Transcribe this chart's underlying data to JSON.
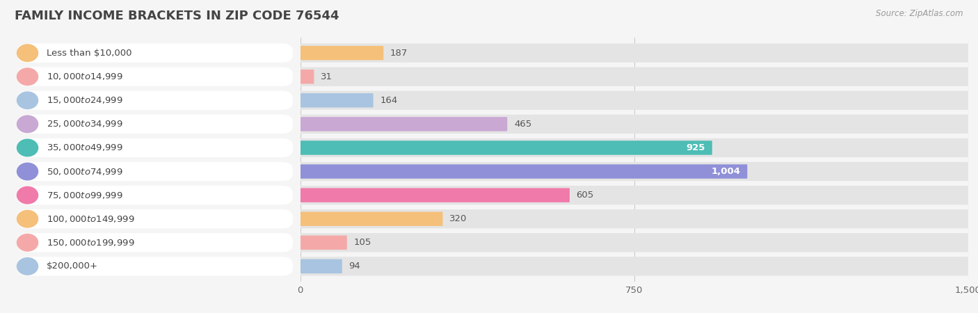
{
  "title": "FAMILY INCOME BRACKETS IN ZIP CODE 76544",
  "source": "Source: ZipAtlas.com",
  "categories": [
    "Less than $10,000",
    "$10,000 to $14,999",
    "$15,000 to $24,999",
    "$25,000 to $34,999",
    "$35,000 to $49,999",
    "$50,000 to $74,999",
    "$75,000 to $99,999",
    "$100,000 to $149,999",
    "$150,000 to $199,999",
    "$200,000+"
  ],
  "values": [
    187,
    31,
    164,
    465,
    925,
    1004,
    605,
    320,
    105,
    94
  ],
  "bar_colors": [
    "#F5C07A",
    "#F4A9A8",
    "#A8C4E0",
    "#C9A8D4",
    "#4DBDB5",
    "#9090D8",
    "#F07AAA",
    "#F5C07A",
    "#F4A9A8",
    "#A8C4E0"
  ],
  "xlim": [
    0,
    1500
  ],
  "xticks": [
    0,
    750,
    1500
  ],
  "background_color": "#f5f5f5",
  "bar_background_color": "#e4e4e4",
  "title_fontsize": 13,
  "label_fontsize": 9.5,
  "value_fontsize": 9.5,
  "title_color": "#444444",
  "label_color": "#444444",
  "source_color": "#999999"
}
